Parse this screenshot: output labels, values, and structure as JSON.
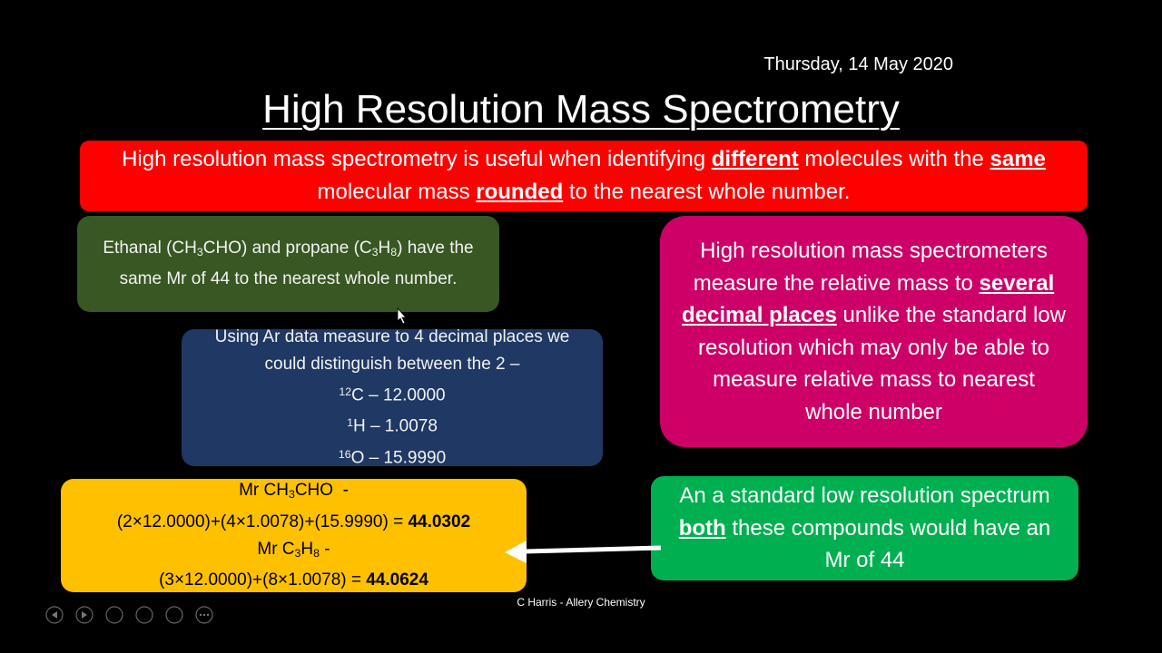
{
  "date": "Thursday, 14 May 2020",
  "title": "High Resolution Mass Spectrometry",
  "red_box": {
    "parts": [
      "High resolution mass spectrometry is useful when identifying ",
      "different",
      " molecules with the ",
      "same",
      " molecular mass ",
      "rounded",
      " to the nearest whole number."
    ]
  },
  "green_box": {
    "parts": [
      "Ethanal (CH",
      "3",
      "CHO) and propane (C",
      "3",
      "H",
      "8",
      ") have the same Mr of 44 to the nearest whole number."
    ]
  },
  "blue_box": {
    "intro": "Using Ar data measure to 4 decimal places we could distinguish between the 2 –",
    "isotopes": [
      {
        "mass": "12",
        "text": "C – 12.0000"
      },
      {
        "mass": "1",
        "text": "H – 1.0078"
      },
      {
        "mass": "16",
        "text": "O – 15.9990"
      }
    ]
  },
  "magenta_box": {
    "parts": [
      "High resolution mass spectrometers measure the relative mass to ",
      "several decimal places",
      " unlike the standard low resolution which may only be able to measure relative mass to nearest whole number"
    ]
  },
  "yellow_box": {
    "lines": [
      [
        "Mr CH",
        "3",
        "CHO  -"
      ],
      [
        "(2×12.0000)+(4×1.0078)+(15.9990) = ",
        "44.0302"
      ],
      [
        "Mr C",
        "3",
        "H",
        "8",
        " -"
      ],
      [
        "(3×12.0000)+(8×1.0078) = ",
        "44.0624"
      ]
    ]
  },
  "green2_box": {
    "parts": [
      "An a standard low resolution spectrum ",
      "both",
      " these compounds would have an Mr of 44"
    ]
  },
  "footer": "C Harris - Allery Chemistry"
}
